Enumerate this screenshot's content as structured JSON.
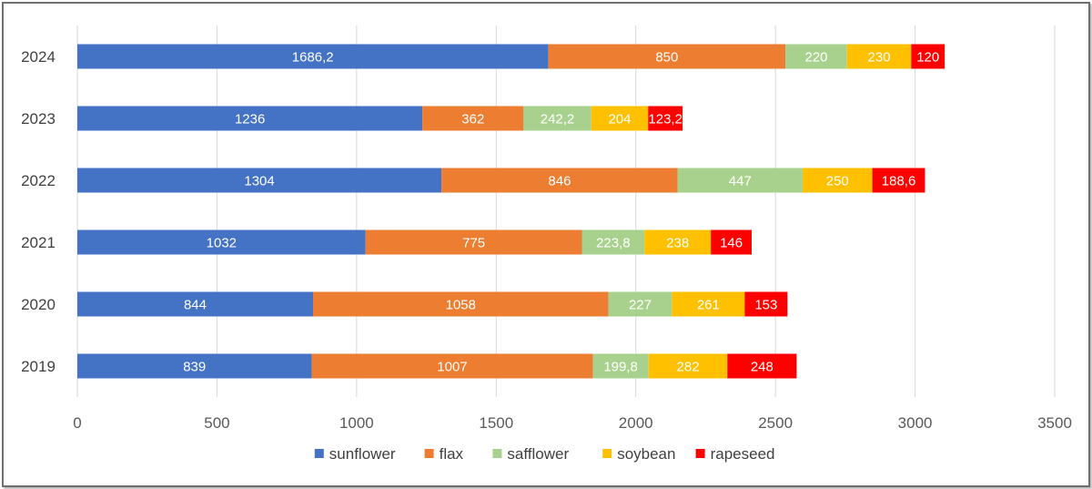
{
  "chart_data": {
    "type": "bar",
    "orientation": "horizontal",
    "stacked": true,
    "title": "",
    "xlabel": "",
    "ylabel": "",
    "categories": [
      "2019",
      "2020",
      "2021",
      "2022",
      "2023",
      "2024"
    ],
    "series": [
      {
        "name": "sunflower",
        "color": "#4472C4",
        "values": [
          839,
          844,
          1032,
          1304,
          1236,
          1686.2
        ],
        "labels": [
          "839",
          "844",
          "1032",
          "1304",
          "1236",
          "1686,2"
        ]
      },
      {
        "name": "flax",
        "color": "#ED7D31",
        "values": [
          1007,
          1058,
          775,
          846,
          362,
          850
        ],
        "labels": [
          "1007",
          "1058",
          "775",
          "846",
          "362",
          "850"
        ]
      },
      {
        "name": "safflower",
        "color": "#A9D18E",
        "values": [
          199.8,
          227,
          223.8,
          447,
          242.2,
          220
        ],
        "labels": [
          "199,8",
          "227",
          "223,8",
          "447",
          "242,2",
          "220"
        ]
      },
      {
        "name": "soybean",
        "color": "#FFC000",
        "values": [
          282,
          261,
          238,
          250,
          204,
          230
        ],
        "labels": [
          "282",
          "261",
          "238",
          "250",
          "204",
          "230"
        ]
      },
      {
        "name": "rapeseed",
        "color": "#FF0000",
        "values": [
          248,
          153,
          146,
          188.6,
          123.2,
          120
        ],
        "labels": [
          "248",
          "153",
          "146",
          "188,6",
          "123,2",
          "120"
        ]
      }
    ],
    "xlim": [
      0,
      3500
    ],
    "xticks": [
      "0",
      "500",
      "1000",
      "1500",
      "2000",
      "2500",
      "3000",
      "3500"
    ],
    "grid": "vertical",
    "legend": "bottom"
  }
}
